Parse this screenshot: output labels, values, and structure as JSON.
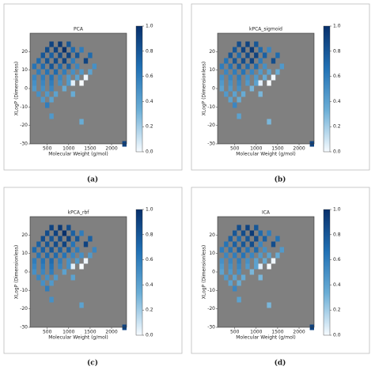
{
  "chart_data": [
    {
      "type": "heatmap",
      "title": "PCA",
      "caption": "(a)",
      "xlabel": "Molecular Weight (g/mol)",
      "ylabel": "XLogP (Dimensionless)",
      "xlim": [
        100,
        2350
      ],
      "ylim": [
        -30,
        30
      ],
      "xticks": [
        500,
        1000,
        1500,
        2000
      ],
      "yticks": [
        -30,
        -20,
        -10,
        0,
        10,
        20
      ],
      "clim": [
        0,
        1
      ],
      "cticks": [
        {
          "value": 0,
          "label": "0.0"
        },
        {
          "value": 0.2,
          "label": "0.2"
        },
        {
          "value": 0.4,
          "label": "0.4"
        },
        {
          "value": 0.6,
          "label": "0.6"
        },
        {
          "value": 0.8,
          "label": "0.8"
        },
        {
          "value": 1,
          "label": "1.0"
        }
      ],
      "colors": [
        "#f7fbff",
        "#6baed6",
        "#2171b5",
        "#08306b"
      ],
      "background": "#808080",
      "x": [
        600,
        800,
        1000,
        500,
        700,
        900,
        1100,
        1300,
        400,
        600,
        800,
        1000,
        1200,
        1500,
        300,
        500,
        700,
        900,
        1100,
        1400,
        200,
        400,
        600,
        800,
        1000,
        1200,
        1600,
        300,
        500,
        700,
        900,
        1100,
        1300,
        1500,
        200,
        400,
        600,
        800,
        1000,
        1200,
        1400,
        200,
        400,
        600,
        800,
        1000,
        1300,
        200,
        400,
        600,
        900,
        300,
        500,
        700,
        1100,
        400,
        600,
        500,
        600,
        1300,
        2300,
        1100,
        1400
      ],
      "y": [
        24,
        24,
        24,
        21,
        21,
        21,
        21,
        21,
        18,
        18,
        18,
        18,
        18,
        18,
        15,
        15,
        15,
        15,
        15,
        15,
        12,
        12,
        12,
        12,
        12,
        12,
        12,
        9,
        9,
        9,
        9,
        9,
        9,
        9,
        6,
        6,
        6,
        6,
        6,
        6,
        6,
        3,
        3,
        3,
        3,
        3,
        3,
        0,
        0,
        0,
        0,
        -3,
        -3,
        -3,
        -3,
        -6,
        -6,
        -9,
        -15,
        -18,
        -30,
        3,
        6
      ],
      "values": [
        0.9,
        0.95,
        0.8,
        0.85,
        0.9,
        1,
        0.7,
        0.6,
        0.8,
        0.75,
        0.85,
        0.9,
        0.8,
        0.7,
        0.7,
        0.8,
        0.85,
        0.9,
        0.6,
        0.9,
        0.65,
        0.7,
        0.8,
        0.7,
        0.75,
        0.55,
        0.5,
        0.6,
        0.65,
        0.7,
        0.6,
        0.5,
        0.45,
        0.4,
        0.55,
        0.6,
        0.65,
        0.55,
        0.45,
        0.4,
        0.35,
        0.5,
        0.55,
        0.6,
        0.5,
        0.45,
        0,
        0.45,
        0.5,
        0.55,
        0.35,
        0.5,
        0.45,
        0.4,
        0.35,
        0.45,
        0.4,
        0.6,
        0.45,
        0.35,
        0.9,
        0.05,
        0.02
      ]
    },
    {
      "type": "heatmap",
      "title": "kPCA_sigmoid",
      "caption": "(b)",
      "xlabel": "Molecular Weight (g/mol)",
      "ylabel": "XLogP (Dimensionless)",
      "xlim": [
        100,
        2350
      ],
      "ylim": [
        -30,
        30
      ],
      "xticks": [
        500,
        1000,
        1500,
        2000
      ],
      "yticks": [
        -30,
        -20,
        -10,
        0,
        10,
        20
      ],
      "clim": [
        0,
        1
      ],
      "cticks": [
        {
          "value": 0,
          "label": "0.0"
        },
        {
          "value": 0.2,
          "label": "0.2"
        },
        {
          "value": 0.4,
          "label": "0.4"
        },
        {
          "value": 0.6,
          "label": "0.6"
        },
        {
          "value": 0.8,
          "label": "0.8"
        },
        {
          "value": 1,
          "label": "1.0"
        }
      ],
      "colors": [
        "#f7fbff",
        "#6baed6",
        "#2171b5",
        "#08306b"
      ],
      "background": "#808080",
      "x": [
        600,
        800,
        1000,
        500,
        700,
        900,
        1100,
        1300,
        400,
        600,
        800,
        1000,
        1200,
        1500,
        300,
        500,
        700,
        900,
        1100,
        1400,
        200,
        400,
        600,
        800,
        1000,
        1200,
        1600,
        300,
        500,
        700,
        900,
        1100,
        1300,
        1500,
        200,
        400,
        600,
        800,
        1000,
        1200,
        1400,
        200,
        400,
        600,
        800,
        1000,
        1300,
        200,
        400,
        600,
        900,
        300,
        500,
        700,
        1100,
        400,
        600,
        500,
        600,
        1300,
        2300,
        1100,
        1400
      ],
      "y": [
        24,
        24,
        24,
        21,
        21,
        21,
        21,
        21,
        18,
        18,
        18,
        18,
        18,
        18,
        15,
        15,
        15,
        15,
        15,
        15,
        12,
        12,
        12,
        12,
        12,
        12,
        12,
        9,
        9,
        9,
        9,
        9,
        9,
        9,
        6,
        6,
        6,
        6,
        6,
        6,
        6,
        3,
        3,
        3,
        3,
        3,
        3,
        0,
        0,
        0,
        0,
        -3,
        -3,
        -3,
        -3,
        -6,
        -6,
        -9,
        -15,
        -18,
        -30,
        3,
        6
      ],
      "values": [
        0.85,
        0.9,
        0.8,
        0.8,
        0.9,
        0.95,
        0.7,
        0.55,
        0.8,
        0.7,
        0.85,
        0.9,
        0.75,
        0.7,
        0.65,
        0.8,
        0.85,
        0.9,
        0.6,
        0.85,
        0.6,
        0.65,
        0.75,
        0.7,
        0.7,
        0.5,
        0.45,
        0.55,
        0.6,
        0.65,
        0.55,
        0.45,
        0.4,
        0.35,
        0.5,
        0.55,
        0.6,
        0.5,
        0.45,
        0.35,
        0.3,
        0.45,
        0.5,
        0.55,
        0.45,
        0.4,
        0,
        0.4,
        0.45,
        0.5,
        0.3,
        0.45,
        0.4,
        0.35,
        0.3,
        0.4,
        0.35,
        0.55,
        0.4,
        0.3,
        0.9,
        0.05,
        0.02
      ]
    },
    {
      "type": "heatmap",
      "title": "kPCA_rbf",
      "caption": "(c)",
      "xlabel": "Molecular Weight (g/mol)",
      "ylabel": "XLogP (Dimensionless)",
      "xlim": [
        100,
        2350
      ],
      "ylim": [
        -30,
        30
      ],
      "xticks": [
        500,
        1000,
        1500,
        2000
      ],
      "yticks": [
        -30,
        -20,
        -10,
        0,
        10,
        20
      ],
      "clim": [
        0,
        1
      ],
      "cticks": [
        {
          "value": 0,
          "label": "0.0"
        },
        {
          "value": 0.2,
          "label": "0.2"
        },
        {
          "value": 0.4,
          "label": "0.4"
        },
        {
          "value": 0.6,
          "label": "0.6"
        },
        {
          "value": 0.8,
          "label": "0.8"
        },
        {
          "value": 1,
          "label": "1.0"
        }
      ],
      "colors": [
        "#f7fbff",
        "#6baed6",
        "#2171b5",
        "#08306b"
      ],
      "background": "#808080",
      "x": [
        600,
        800,
        1000,
        500,
        700,
        900,
        1100,
        1300,
        400,
        600,
        800,
        1000,
        1200,
        1500,
        300,
        500,
        700,
        900,
        1100,
        1400,
        200,
        400,
        600,
        800,
        1000,
        1200,
        1600,
        300,
        500,
        700,
        900,
        1100,
        1300,
        1500,
        200,
        400,
        600,
        800,
        1000,
        1200,
        1400,
        200,
        400,
        600,
        800,
        1000,
        1300,
        200,
        400,
        600,
        900,
        300,
        500,
        700,
        1100,
        400,
        600,
        500,
        600,
        1300,
        2300,
        1100,
        1400
      ],
      "y": [
        24,
        24,
        24,
        21,
        21,
        21,
        21,
        21,
        18,
        18,
        18,
        18,
        18,
        18,
        15,
        15,
        15,
        15,
        15,
        15,
        12,
        12,
        12,
        12,
        12,
        12,
        12,
        9,
        9,
        9,
        9,
        9,
        9,
        9,
        6,
        6,
        6,
        6,
        6,
        6,
        6,
        3,
        3,
        3,
        3,
        3,
        3,
        0,
        0,
        0,
        0,
        -3,
        -3,
        -3,
        -3,
        -6,
        -6,
        -9,
        -15,
        -18,
        -30,
        3,
        6
      ],
      "values": [
        0.9,
        0.95,
        0.85,
        0.85,
        0.9,
        1,
        0.75,
        0.6,
        0.85,
        0.8,
        0.85,
        0.9,
        0.8,
        0.75,
        0.75,
        0.8,
        0.85,
        0.9,
        0.65,
        0.9,
        0.7,
        0.75,
        0.8,
        0.75,
        0.75,
        0.6,
        0.55,
        0.65,
        0.7,
        0.7,
        0.65,
        0.55,
        0.5,
        0.45,
        0.6,
        0.65,
        0.7,
        0.6,
        0.5,
        0.45,
        0.4,
        0.55,
        0.6,
        0.65,
        0.55,
        0.5,
        0,
        0.5,
        0.55,
        0.6,
        0.4,
        0.55,
        0.5,
        0.45,
        0.4,
        0.5,
        0.45,
        0.6,
        0.5,
        0.4,
        0.9,
        0.05,
        0.02
      ]
    },
    {
      "type": "heatmap",
      "title": "ICA",
      "caption": "(d)",
      "xlabel": "Molecular Weight (g/mol)",
      "ylabel": "XLogP (Dimensionless)",
      "xlim": [
        100,
        2350
      ],
      "ylim": [
        -30,
        30
      ],
      "xticks": [
        500,
        1000,
        1500,
        2000
      ],
      "yticks": [
        -30,
        -20,
        -10,
        0,
        10,
        20
      ],
      "clim": [
        0,
        1
      ],
      "cticks": [
        {
          "value": 0,
          "label": "0.0"
        },
        {
          "value": 0.2,
          "label": "0.2"
        },
        {
          "value": 0.4,
          "label": "0.4"
        },
        {
          "value": 0.6,
          "label": "0.6"
        },
        {
          "value": 0.8,
          "label": "0.8"
        },
        {
          "value": 1,
          "label": "1.0"
        }
      ],
      "colors": [
        "#f7fbff",
        "#6baed6",
        "#2171b5",
        "#08306b"
      ],
      "background": "#808080",
      "x": [
        600,
        800,
        1000,
        500,
        700,
        900,
        1100,
        1300,
        400,
        600,
        800,
        1000,
        1200,
        1500,
        300,
        500,
        700,
        900,
        1100,
        1400,
        200,
        400,
        600,
        800,
        1000,
        1200,
        1600,
        300,
        500,
        700,
        900,
        1100,
        1300,
        1500,
        200,
        400,
        600,
        800,
        1000,
        1200,
        1400,
        200,
        400,
        600,
        800,
        1000,
        1300,
        200,
        400,
        600,
        900,
        300,
        500,
        700,
        1100,
        400,
        600,
        500,
        600,
        1300,
        2300,
        1100,
        1400
      ],
      "y": [
        24,
        24,
        24,
        21,
        21,
        21,
        21,
        21,
        18,
        18,
        18,
        18,
        18,
        18,
        15,
        15,
        15,
        15,
        15,
        15,
        12,
        12,
        12,
        12,
        12,
        12,
        12,
        9,
        9,
        9,
        9,
        9,
        9,
        9,
        6,
        6,
        6,
        6,
        6,
        6,
        6,
        3,
        3,
        3,
        3,
        3,
        3,
        0,
        0,
        0,
        0,
        -3,
        -3,
        -3,
        -3,
        -6,
        -6,
        -9,
        -15,
        -18,
        -30,
        3,
        6
      ],
      "values": [
        0.85,
        0.9,
        0.8,
        0.8,
        0.85,
        0.95,
        0.7,
        0.6,
        0.75,
        0.7,
        0.8,
        0.85,
        0.75,
        0.65,
        0.65,
        0.75,
        0.8,
        0.85,
        0.55,
        0.85,
        0.6,
        0.65,
        0.75,
        0.65,
        0.7,
        0.5,
        0.45,
        0.55,
        0.6,
        0.65,
        0.55,
        0.45,
        0.4,
        0.35,
        0.5,
        0.55,
        0.6,
        0.5,
        0.4,
        0.35,
        0.3,
        0.45,
        0.5,
        0.55,
        0.45,
        0.4,
        0,
        0.4,
        0.45,
        0.5,
        0.3,
        0.45,
        0.4,
        0.35,
        0.3,
        0.4,
        0.35,
        0.55,
        0.4,
        0.3,
        0.9,
        0.05,
        0.02
      ]
    }
  ]
}
